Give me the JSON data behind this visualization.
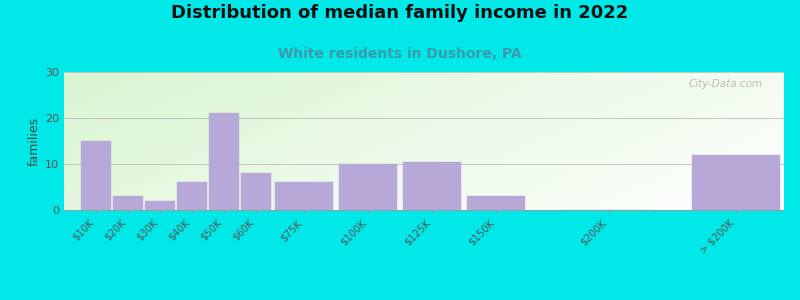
{
  "title": "Distribution of median family income in 2022",
  "subtitle": "White residents in Dushore, PA",
  "title_fontsize": 13,
  "subtitle_fontsize": 10,
  "title_color": "#111111",
  "subtitle_color": "#3a9aaa",
  "ylabel": "families",
  "ylabel_fontsize": 9,
  "background_color": "#00e8e8",
  "bar_color": "#b8a8d8",
  "categories": [
    "$10K",
    "$20K",
    "$30K",
    "$40K",
    "$50K",
    "$60K",
    "$75K",
    "$100K",
    "$125K",
    "$150K",
    "$200K",
    "> $200K"
  ],
  "values": [
    15,
    3,
    2,
    6,
    21,
    8,
    6,
    10,
    10.5,
    3,
    0,
    12
  ],
  "bar_positions": [
    0,
    1,
    2,
    3,
    4,
    5,
    6,
    8,
    10,
    12,
    15,
    19
  ],
  "bar_widths": [
    1,
    1,
    1,
    1,
    1,
    1,
    2,
    2,
    2,
    2,
    3,
    3
  ],
  "xlim": [
    -0.5,
    22
  ],
  "ylim": [
    0,
    30
  ],
  "yticks": [
    0,
    10,
    20,
    30
  ],
  "watermark": "City-Data.com",
  "figsize": [
    8.0,
    3.0
  ],
  "dpi": 100
}
